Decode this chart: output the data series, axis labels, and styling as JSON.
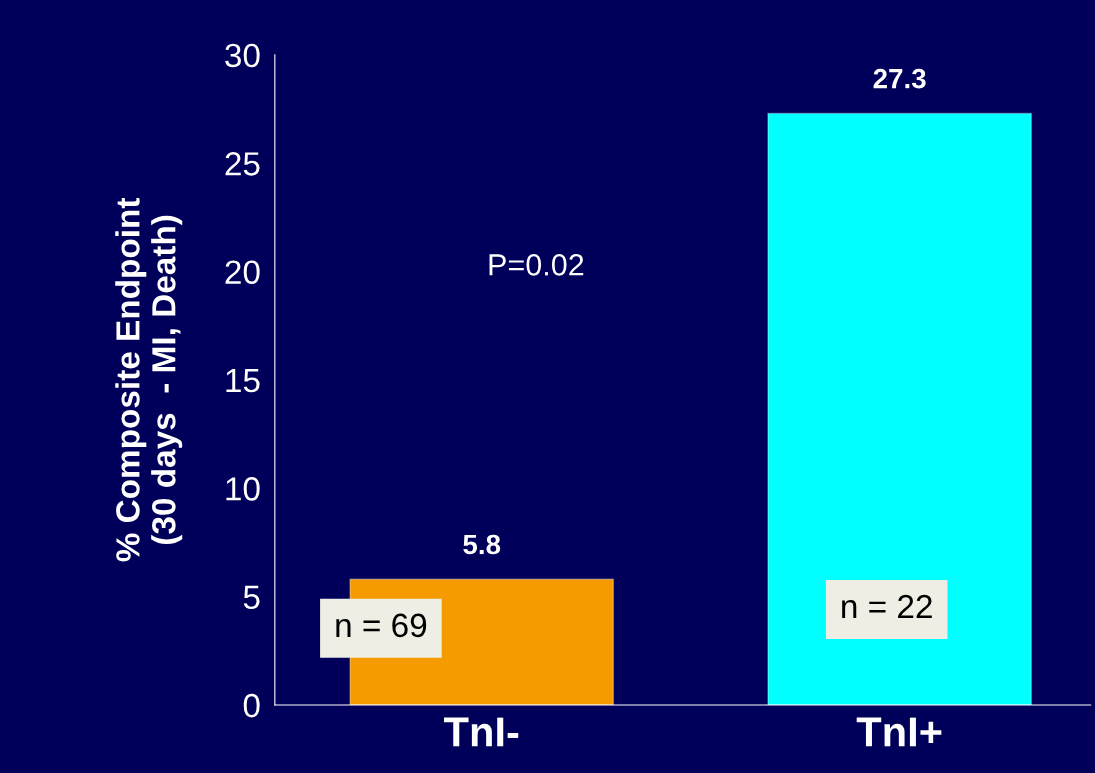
{
  "chart_data": {
    "type": "bar",
    "ylabel": "% Composite Endpoint\n(30 days  - MI, Death)",
    "categories": [
      "TnI-",
      "TnI+"
    ],
    "values": [
      5.8,
      27.3
    ],
    "colors": [
      "#f59b00",
      "#00ffff"
    ],
    "ylim": [
      0,
      30
    ],
    "yticks": [
      0,
      5,
      10,
      15,
      20,
      25,
      30
    ],
    "data_labels": true,
    "grid": false,
    "legend": false,
    "annotations": [
      "P=0.02",
      "n = 69",
      "n = 22"
    ]
  }
}
